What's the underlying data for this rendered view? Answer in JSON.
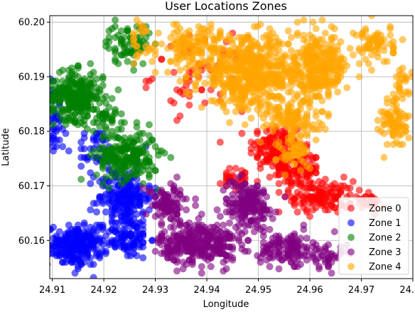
{
  "chart_data": {
    "type": "scatter",
    "title": "User Locations Zones",
    "xlabel": "Longitude",
    "ylabel": "Latitude",
    "xlim": [
      24.9095,
      24.98
    ],
    "ylim": [
      60.153,
      60.2012
    ],
    "x_ticks": [
      "24.91",
      "24.92",
      "24.93",
      "24.94",
      "24.95",
      "24.96",
      "24.97",
      "24.98"
    ],
    "x_tick_values": [
      24.91,
      24.92,
      24.93,
      24.94,
      24.95,
      24.96,
      24.97,
      24.98
    ],
    "y_ticks": [
      "60.16",
      "60.17",
      "60.18",
      "60.19",
      "60.20"
    ],
    "y_tick_values": [
      60.16,
      60.17,
      60.18,
      60.19,
      60.2
    ],
    "grid": true,
    "legend_position": "lower-right",
    "series": [
      {
        "name": "Zone 0",
        "color": "#ff0000",
        "clusters": [
          {
            "x": 24.9535,
            "y": 60.177,
            "sx": 0.0035,
            "sy": 0.003,
            "n": 140
          },
          {
            "x": 24.9575,
            "y": 60.173,
            "sx": 0.003,
            "sy": 0.0025,
            "n": 110
          },
          {
            "x": 24.9625,
            "y": 60.168,
            "sx": 0.004,
            "sy": 0.002,
            "n": 130
          },
          {
            "x": 24.9715,
            "y": 60.167,
            "sx": 0.0015,
            "sy": 0.001,
            "n": 30
          },
          {
            "x": 24.9385,
            "y": 60.1905,
            "sx": 0.006,
            "sy": 0.0045,
            "n": 60
          },
          {
            "x": 24.946,
            "y": 60.171,
            "sx": 0.003,
            "sy": 0.0015,
            "n": 30
          }
        ]
      },
      {
        "name": "Zone 1",
        "color": "#0000ff",
        "clusters": [
          {
            "x": 24.9145,
            "y": 60.159,
            "sx": 0.0035,
            "sy": 0.0025,
            "n": 230
          },
          {
            "x": 24.924,
            "y": 60.168,
            "sx": 0.0035,
            "sy": 0.0035,
            "n": 200
          },
          {
            "x": 24.9245,
            "y": 60.1605,
            "sx": 0.003,
            "sy": 0.0025,
            "n": 100
          },
          {
            "x": 24.9105,
            "y": 60.1825,
            "sx": 0.0015,
            "sy": 0.0045,
            "n": 50
          },
          {
            "x": 24.9185,
            "y": 60.1765,
            "sx": 0.0025,
            "sy": 0.0025,
            "n": 40
          }
        ]
      },
      {
        "name": "Zone 2",
        "color": "#008000",
        "clusters": [
          {
            "x": 24.9145,
            "y": 60.1865,
            "sx": 0.0035,
            "sy": 0.003,
            "n": 270
          },
          {
            "x": 24.9245,
            "y": 60.1755,
            "sx": 0.004,
            "sy": 0.003,
            "n": 220
          },
          {
            "x": 24.9245,
            "y": 60.196,
            "sx": 0.003,
            "sy": 0.0025,
            "n": 70
          },
          {
            "x": 24.9205,
            "y": 60.1825,
            "sx": 0.002,
            "sy": 0.002,
            "n": 40
          }
        ]
      },
      {
        "name": "Zone 3",
        "color": "#800080",
        "clusters": [
          {
            "x": 24.9385,
            "y": 60.1595,
            "sx": 0.005,
            "sy": 0.0025,
            "n": 320
          },
          {
            "x": 24.948,
            "y": 60.1665,
            "sx": 0.0035,
            "sy": 0.003,
            "n": 180
          },
          {
            "x": 24.9555,
            "y": 60.1585,
            "sx": 0.0035,
            "sy": 0.002,
            "n": 120
          },
          {
            "x": 24.9325,
            "y": 60.1665,
            "sx": 0.003,
            "sy": 0.0025,
            "n": 100
          },
          {
            "x": 24.9635,
            "y": 60.157,
            "sx": 0.0025,
            "sy": 0.0015,
            "n": 40
          }
        ]
      },
      {
        "name": "Zone 4",
        "color": "#ffa500",
        "clusters": [
          {
            "x": 24.9485,
            "y": 60.1905,
            "sx": 0.0065,
            "sy": 0.0045,
            "n": 500
          },
          {
            "x": 24.9615,
            "y": 60.1915,
            "sx": 0.004,
            "sy": 0.004,
            "n": 280
          },
          {
            "x": 24.9375,
            "y": 60.195,
            "sx": 0.004,
            "sy": 0.0035,
            "n": 140
          },
          {
            "x": 24.9565,
            "y": 60.1825,
            "sx": 0.0035,
            "sy": 0.0025,
            "n": 100
          },
          {
            "x": 24.9575,
            "y": 60.176,
            "sx": 0.0025,
            "sy": 0.002,
            "n": 50
          },
          {
            "x": 24.9765,
            "y": 60.1815,
            "sx": 0.0018,
            "sy": 0.003,
            "n": 80
          },
          {
            "x": 24.9725,
            "y": 60.196,
            "sx": 0.0025,
            "sy": 0.0025,
            "n": 70
          },
          {
            "x": 24.9275,
            "y": 60.196,
            "sx": 0.0015,
            "sy": 0.003,
            "n": 25
          },
          {
            "x": 24.978,
            "y": 60.1885,
            "sx": 0.0012,
            "sy": 0.002,
            "n": 25
          }
        ]
      }
    ]
  }
}
